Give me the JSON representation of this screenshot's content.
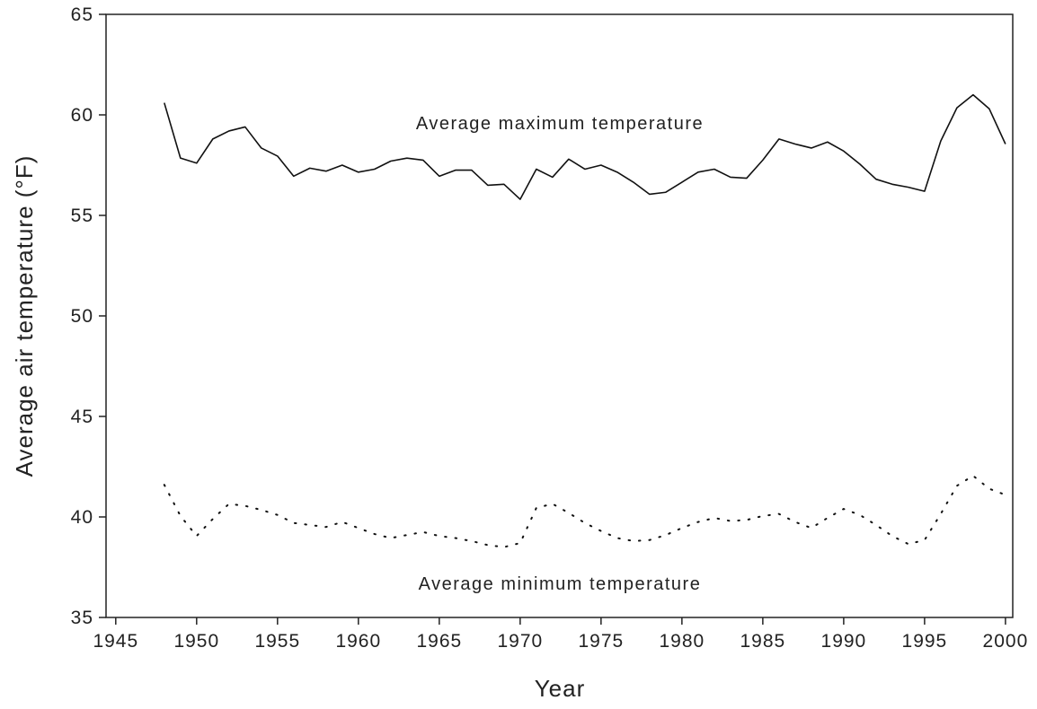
{
  "chart_data": {
    "type": "line",
    "x_label": "Year",
    "y_label": "Average air temperature (°F)",
    "annotations": [
      "Average maximum temperature",
      "Average minimum temperature"
    ],
    "x": [
      1948,
      1949,
      1950,
      1951,
      1952,
      1953,
      1954,
      1955,
      1956,
      1957,
      1958,
      1959,
      1960,
      1961,
      1962,
      1963,
      1964,
      1965,
      1966,
      1967,
      1968,
      1969,
      1970,
      1971,
      1972,
      1973,
      1974,
      1975,
      1976,
      1977,
      1978,
      1979,
      1980,
      1981,
      1982,
      1983,
      1984,
      1985,
      1986,
      1987,
      1988,
      1989,
      1990,
      1991,
      1992,
      1993,
      1994,
      1995,
      1996,
      1997,
      1998,
      1999,
      2000
    ],
    "series": [
      {
        "name": "Average maximum temperature",
        "color": "#111111",
        "style": "solid",
        "values": [
          60.6,
          57.85,
          57.6,
          58.8,
          59.2,
          59.4,
          58.35,
          57.95,
          56.95,
          57.35,
          57.2,
          57.5,
          57.15,
          57.3,
          57.7,
          57.85,
          57.75,
          56.95,
          57.25,
          57.25,
          56.5,
          56.55,
          55.8,
          57.3,
          56.9,
          57.8,
          57.3,
          57.5,
          57.15,
          56.65,
          56.05,
          56.15,
          56.65,
          57.15,
          57.3,
          56.9,
          56.85,
          57.75,
          58.8,
          58.55,
          58.35,
          58.65,
          58.2,
          57.55,
          56.8,
          56.55,
          56.4,
          56.2,
          58.7,
          60.35,
          61.0,
          60.3,
          58.55
        ]
      },
      {
        "name": "Average minimum temperature",
        "color": "#111111",
        "style": "dotted",
        "values": [
          41.6,
          40.05,
          39.05,
          39.9,
          40.65,
          40.55,
          40.35,
          40.1,
          39.7,
          39.6,
          39.5,
          39.75,
          39.45,
          39.15,
          38.95,
          39.1,
          39.25,
          39.05,
          38.95,
          38.8,
          38.6,
          38.5,
          38.7,
          40.45,
          40.65,
          40.2,
          39.7,
          39.3,
          38.95,
          38.8,
          38.85,
          39.1,
          39.45,
          39.75,
          39.95,
          39.8,
          39.85,
          40.05,
          40.15,
          39.75,
          39.45,
          39.95,
          40.4,
          40.1,
          39.6,
          39.05,
          38.65,
          38.85,
          40.15,
          41.55,
          42.05,
          41.4,
          41.1
        ]
      }
    ],
    "xlim": [
      1944.4,
      2000.45
    ],
    "ylim": [
      35,
      65
    ],
    "xticks": [
      1945,
      1950,
      1955,
      1960,
      1965,
      1970,
      1975,
      1980,
      1985,
      1990,
      1995,
      2000
    ],
    "yticks": [
      35,
      40,
      45,
      50,
      55,
      60,
      65
    ],
    "grid": false
  }
}
